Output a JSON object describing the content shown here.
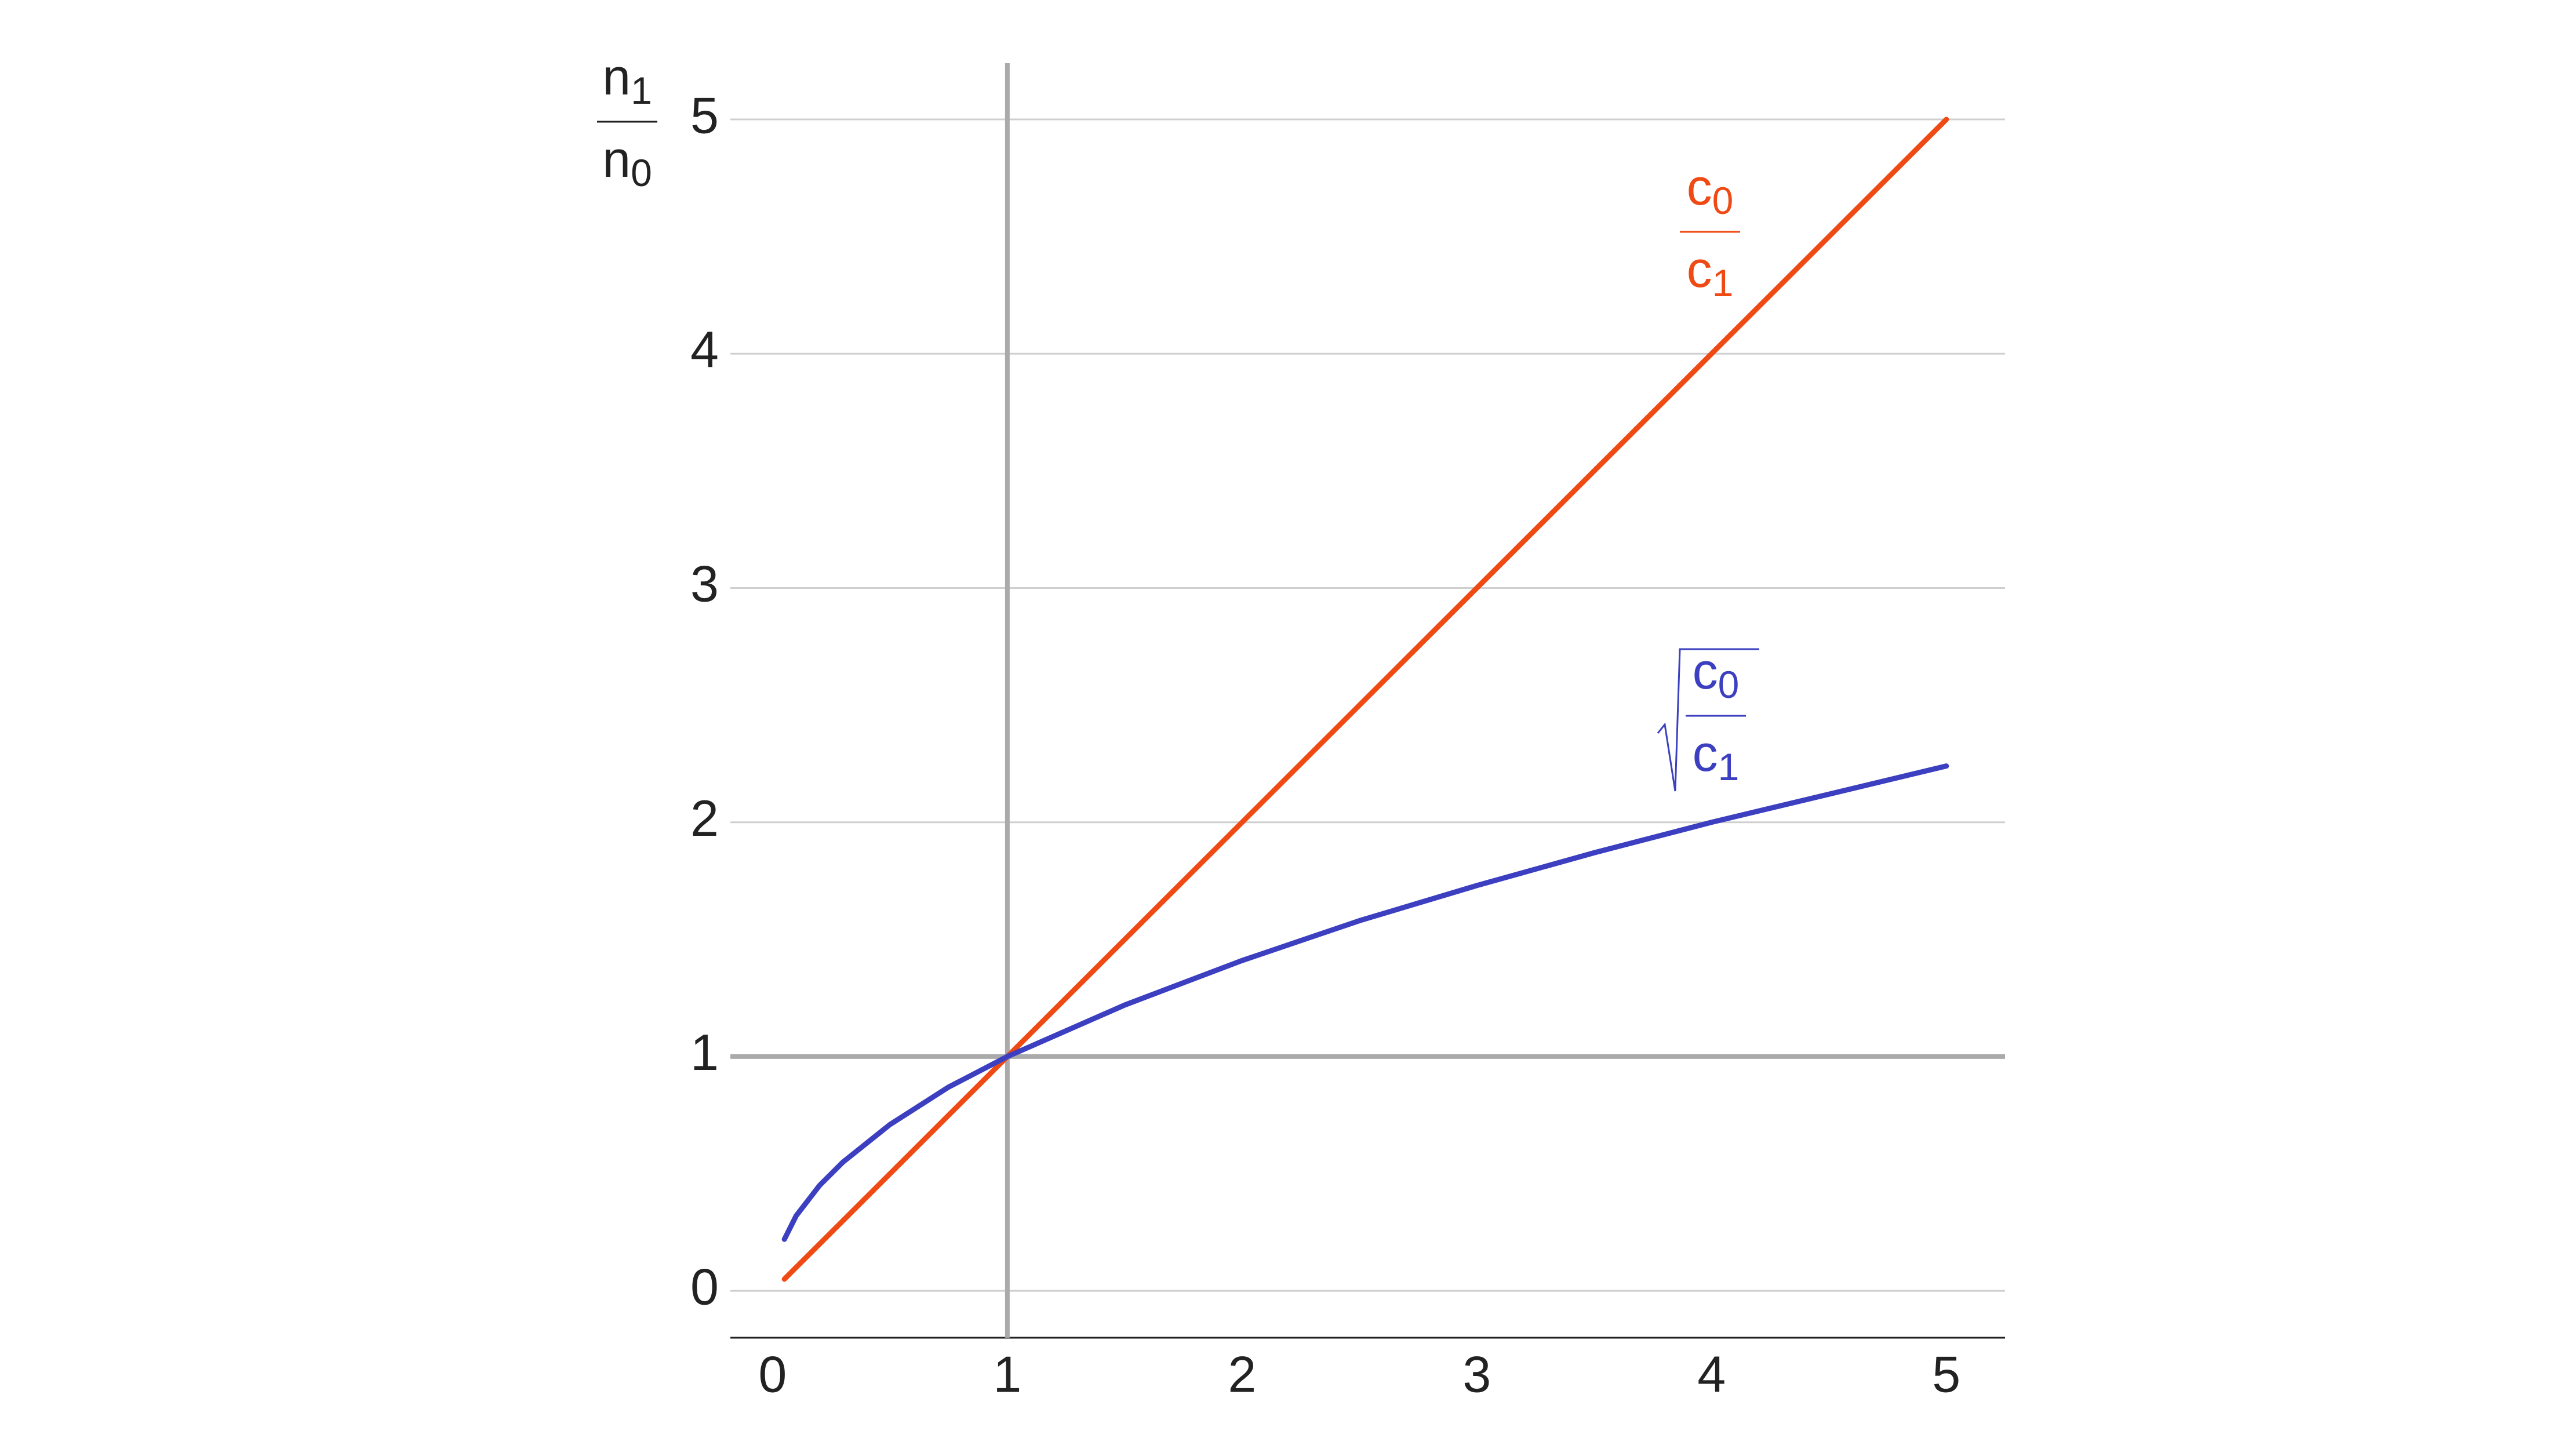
{
  "chart_data": {
    "type": "line",
    "ylabel": {
      "numerator": {
        "base": "n",
        "sub": "1"
      },
      "denominator": {
        "base": "n",
        "sub": "0"
      }
    },
    "x": [
      0.05,
      0.1,
      0.2,
      0.3,
      0.5,
      0.75,
      1,
      1.5,
      2,
      2.5,
      3,
      3.5,
      4,
      4.5,
      5
    ],
    "series": [
      {
        "label": {
          "numerator": {
            "base": "c",
            "sub": "0"
          },
          "denominator": {
            "base": "c",
            "sub": "1"
          },
          "sqrt": false
        },
        "color": "#f04a14",
        "values": [
          0.05,
          0.1,
          0.2,
          0.3,
          0.5,
          0.75,
          1,
          1.5,
          2,
          2.5,
          3,
          3.5,
          4,
          4.5,
          5
        ]
      },
      {
        "label": {
          "numerator": {
            "base": "c",
            "sub": "0"
          },
          "denominator": {
            "base": "c",
            "sub": "1"
          },
          "sqrt": true
        },
        "color": "#3b3fc0",
        "values": [
          0.22,
          0.32,
          0.45,
          0.55,
          0.71,
          0.87,
          1,
          1.22,
          1.41,
          1.58,
          1.73,
          1.87,
          2,
          2.12,
          2.24
        ]
      }
    ],
    "xlim": [
      -0.18,
      5.25
    ],
    "ylim": [
      -0.2,
      5.24
    ],
    "xticks": [
      0,
      1,
      2,
      3,
      4,
      5
    ],
    "yticks": [
      0,
      1,
      2,
      3,
      4,
      5
    ],
    "grid": true,
    "reference_lines": {
      "x": 1,
      "y": 1
    }
  }
}
